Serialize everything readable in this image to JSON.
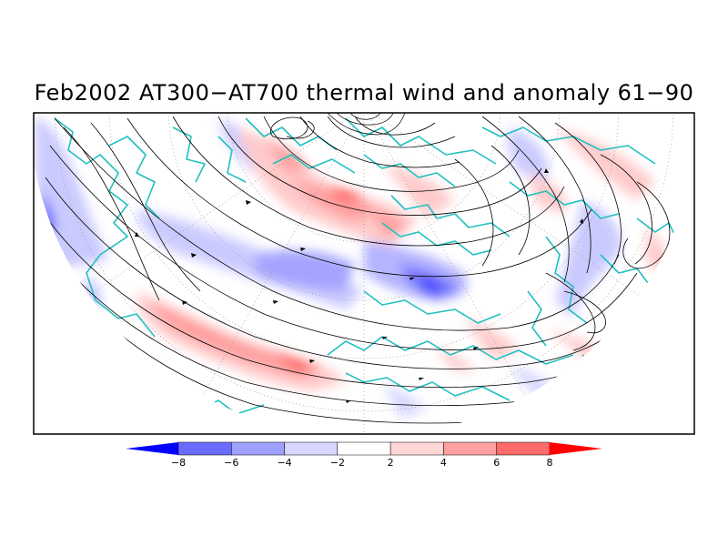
{
  "title": "Feb2002 AT300−AT700 thermal wind and anomaly 61−90",
  "colorbar": {
    "tick_labels": [
      "−8",
      "−6",
      "−4",
      "−2",
      "2",
      "4",
      "6",
      "8"
    ],
    "colors": [
      "#0000ff",
      "#6a6aff",
      "#a0a0ff",
      "#d6d6ff",
      "#ffffff",
      "#ffd6d6",
      "#ffa0a0",
      "#ff6a6a",
      "#ff0000"
    ]
  },
  "colors": {
    "coastline": "#20c0c0",
    "streamline": "#000000",
    "frame": "#000000"
  }
}
